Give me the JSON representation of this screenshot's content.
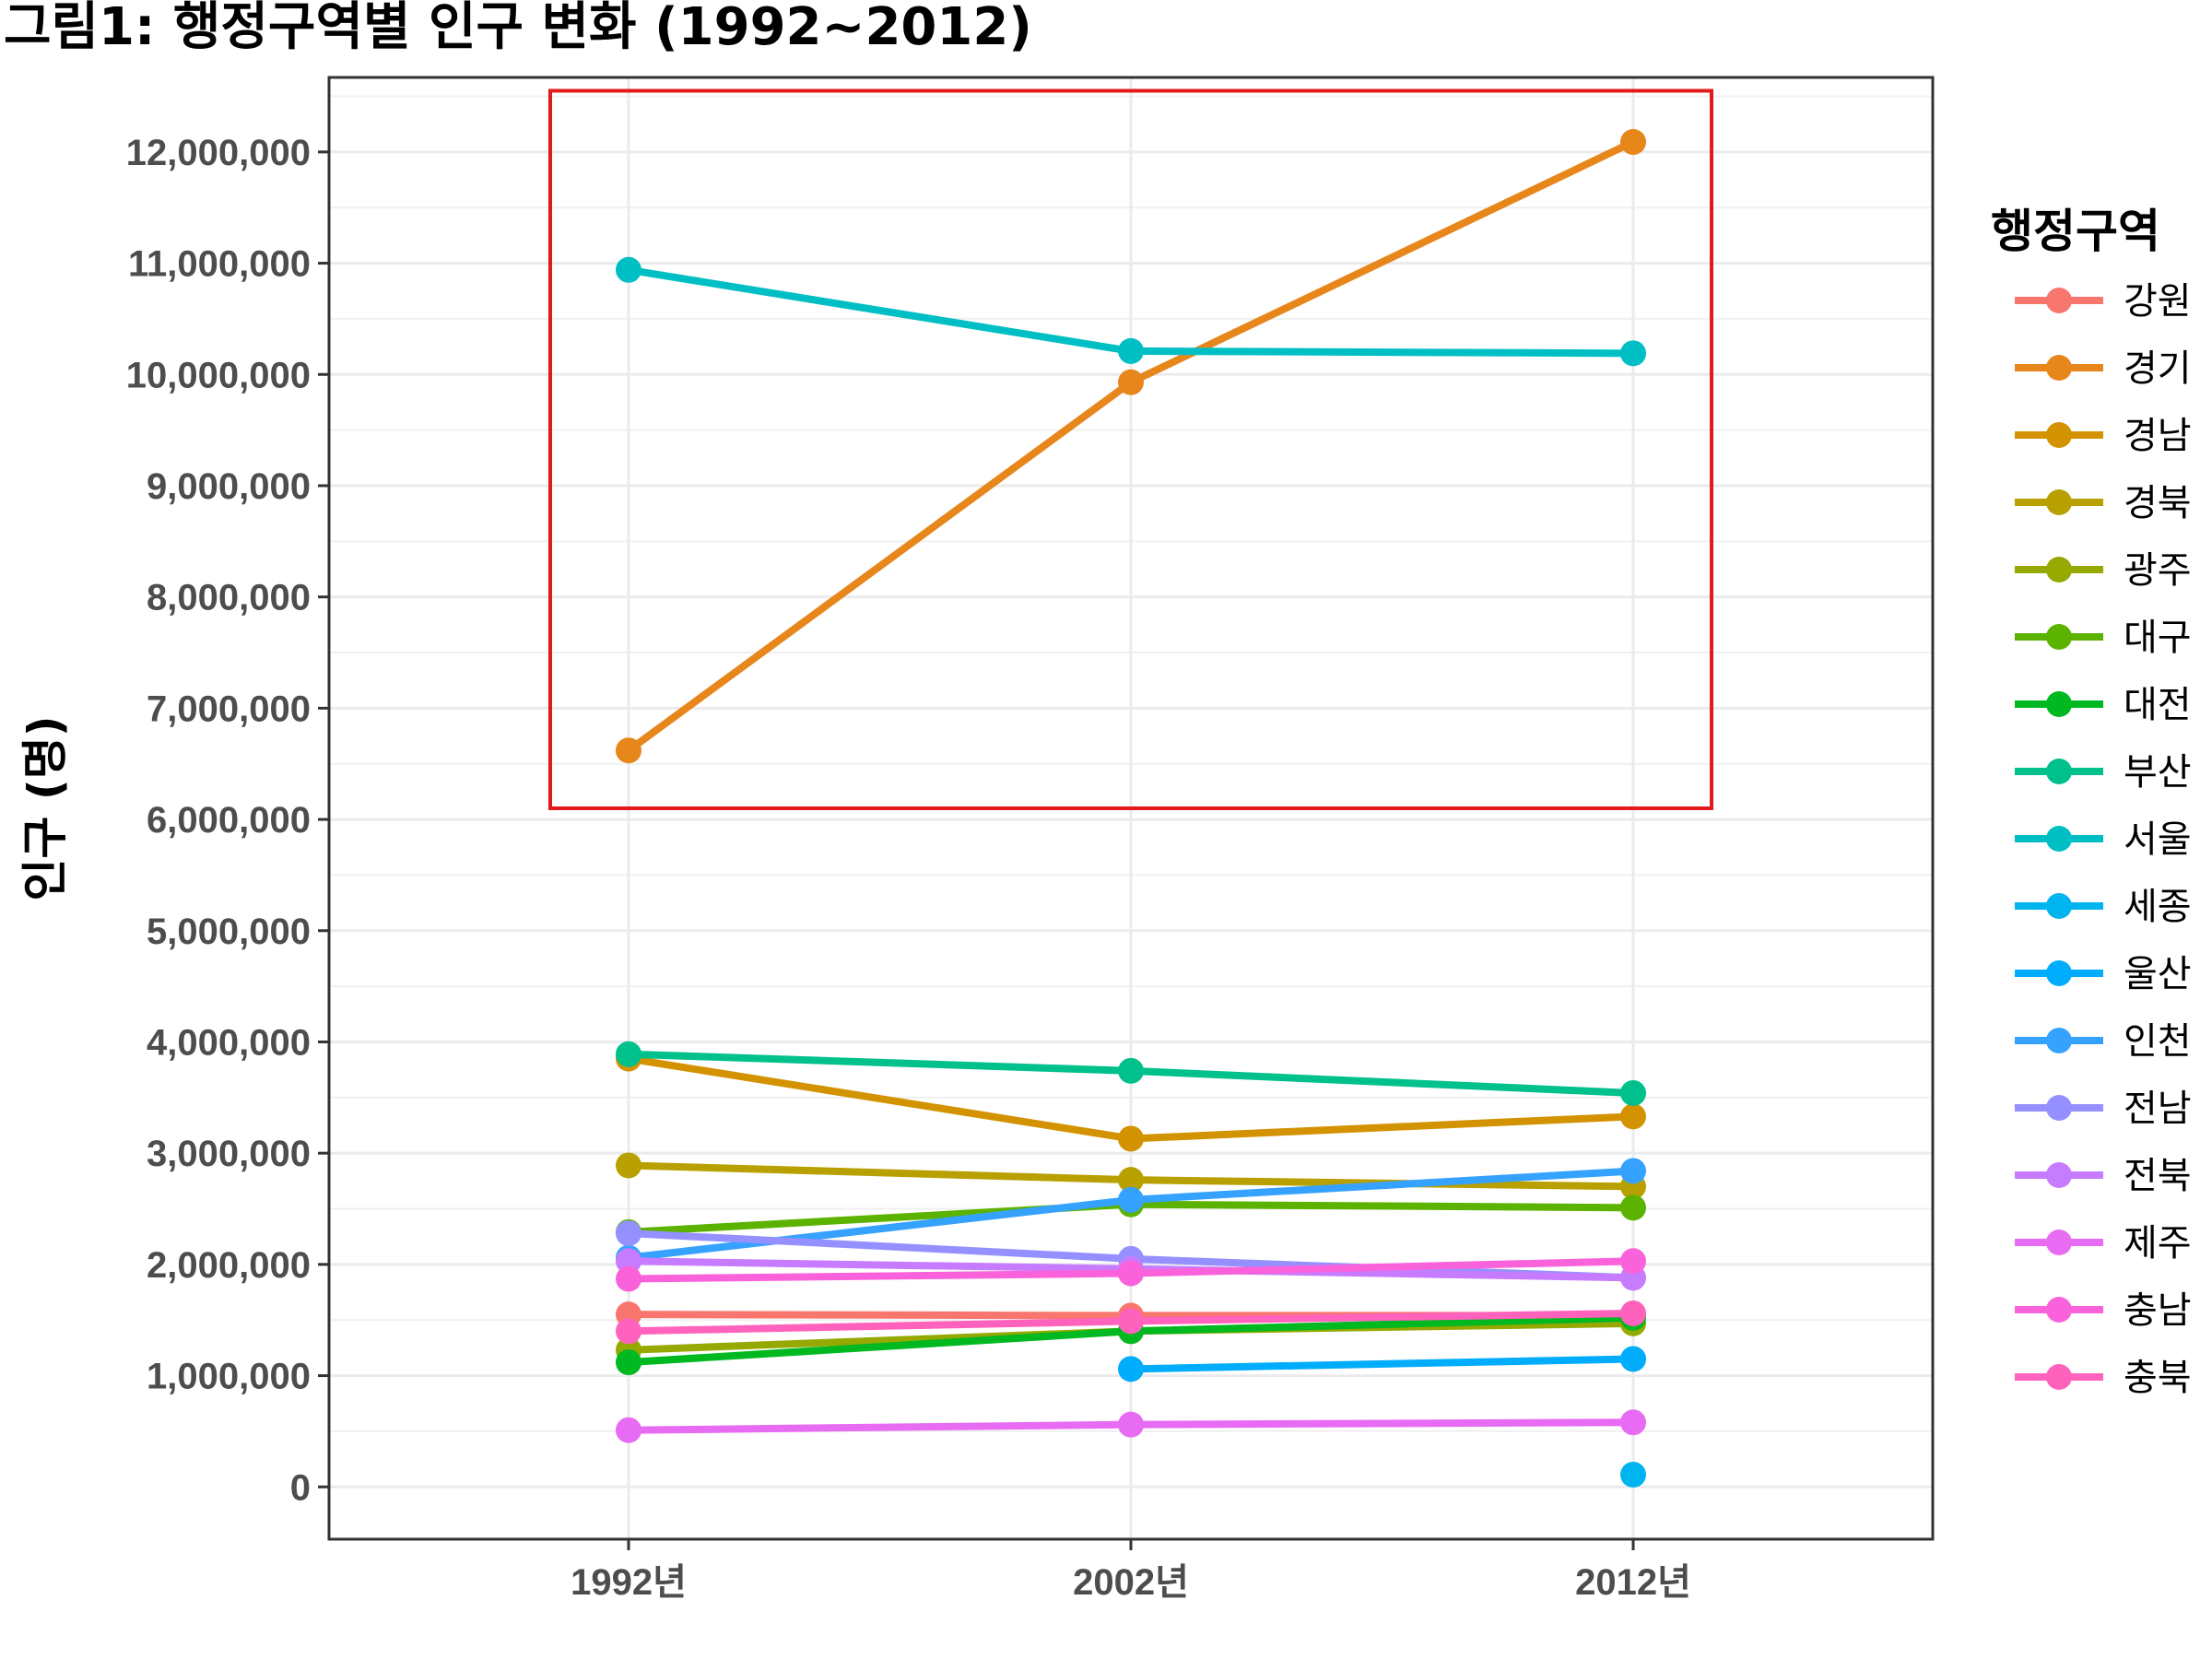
{
  "chart_data": {
    "type": "line",
    "title": "그림1: 행정구역별 인구 변화 (1992~2012)",
    "xlabel": "",
    "ylabel": "인구 (명)",
    "categories": [
      "1992년",
      "2002년",
      "2012년"
    ],
    "ylim": [
      -470000,
      12670000
    ],
    "y_ticks": [
      0,
      1000000,
      2000000,
      3000000,
      4000000,
      5000000,
      6000000,
      7000000,
      8000000,
      9000000,
      10000000,
      11000000,
      12000000
    ],
    "y_tick_labels": [
      "0",
      "1,000,000",
      "2,000,000",
      "3,000,000",
      "4,000,000",
      "5,000,000",
      "6,000,000",
      "7,000,000",
      "8,000,000",
      "9,000,000",
      "10,000,000",
      "11,000,000",
      "12,000,000"
    ],
    "grid": true,
    "legend": {
      "title": "행정구역",
      "position": "right"
    },
    "highlight_box": {
      "x_from": "1992년",
      "x_to": "2012년",
      "y_from": 6100000,
      "y_to": 12550000,
      "color": "#e31a1c"
    },
    "series": [
      {
        "name": "강원",
        "color": "#F8766D",
        "values": [
          1550000,
          1540000,
          1540000
        ]
      },
      {
        "name": "경기",
        "color": "#E7861B",
        "values": [
          6620000,
          9930000,
          12090000
        ]
      },
      {
        "name": "경남",
        "color": "#D39200",
        "values": [
          3850000,
          3130000,
          3330000
        ]
      },
      {
        "name": "경북",
        "color": "#B8A000",
        "values": [
          2890000,
          2760000,
          2700000
        ]
      },
      {
        "name": "광주",
        "color": "#95A900",
        "values": [
          1230000,
          1400000,
          1470000
        ]
      },
      {
        "name": "대구",
        "color": "#5BB300",
        "values": [
          2290000,
          2540000,
          2510000
        ]
      },
      {
        "name": "대전",
        "color": "#00B81F",
        "values": [
          1120000,
          1400000,
          1520000
        ]
      },
      {
        "name": "부산",
        "color": "#00C08B",
        "values": [
          3890000,
          3740000,
          3540000
        ]
      },
      {
        "name": "서울",
        "color": "#00BFC4",
        "values": [
          10940000,
          10210000,
          10190000
        ]
      },
      {
        "name": "세종",
        "color": "#00B4EF",
        "values": [
          null,
          null,
          110000
        ]
      },
      {
        "name": "울산",
        "color": "#00ACFC",
        "values": [
          null,
          1060000,
          1150000
        ]
      },
      {
        "name": "인천",
        "color": "#35A2FF",
        "values": [
          2060000,
          2580000,
          2840000
        ]
      },
      {
        "name": "전남",
        "color": "#9590FF",
        "values": [
          2280000,
          2050000,
          1880000
        ]
      },
      {
        "name": "전북",
        "color": "#C77CFF",
        "values": [
          2030000,
          1960000,
          1880000
        ]
      },
      {
        "name": "제주",
        "color": "#E76BF3",
        "values": [
          510000,
          560000,
          580000
        ]
      },
      {
        "name": "충남",
        "color": "#FA62DB",
        "values": [
          1870000,
          1920000,
          2030000
        ]
      },
      {
        "name": "충북",
        "color": "#FF62BC",
        "values": [
          1400000,
          1490000,
          1560000
        ]
      }
    ]
  }
}
